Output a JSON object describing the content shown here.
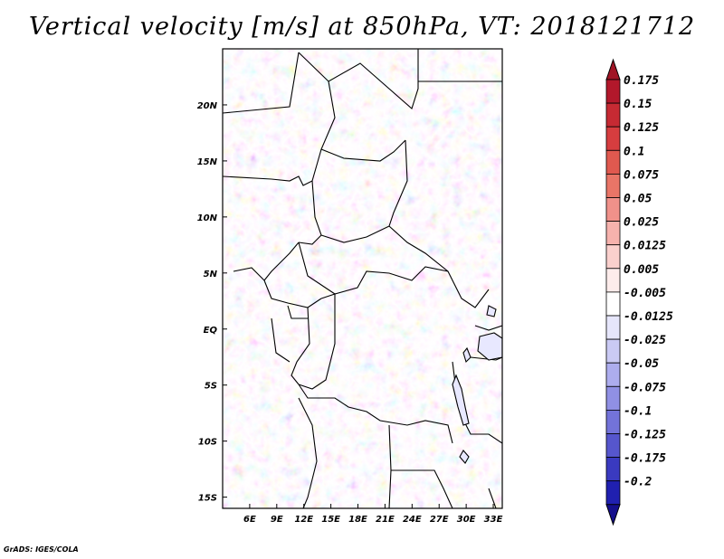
{
  "title": "Vertical velocity [m/s] at 850hPa, VT: 2018121712",
  "credit": "GrADS: IGES/COLA",
  "map": {
    "lon_range": [
      3,
      34
    ],
    "lat_range": [
      -16,
      25
    ],
    "x_ticks": [
      {
        "lon": 6,
        "label": "6E"
      },
      {
        "lon": 9,
        "label": "9E"
      },
      {
        "lon": 12,
        "label": "12E"
      },
      {
        "lon": 15,
        "label": "15E"
      },
      {
        "lon": 18,
        "label": "18E"
      },
      {
        "lon": 21,
        "label": "21E"
      },
      {
        "lon": 24,
        "label": "24E"
      },
      {
        "lon": 27,
        "label": "27E"
      },
      {
        "lon": 30,
        "label": "30E"
      },
      {
        "lon": 33,
        "label": "33E"
      }
    ],
    "y_ticks": [
      {
        "lat": 20,
        "label": "20N"
      },
      {
        "lat": 15,
        "label": "15N"
      },
      {
        "lat": 10,
        "label": "10N"
      },
      {
        "lat": 5,
        "label": "5N"
      },
      {
        "lat": 0,
        "label": "EQ"
      },
      {
        "lat": -5,
        "label": "5S"
      },
      {
        "lat": -10,
        "label": "10S"
      },
      {
        "lat": -15,
        "label": "15S"
      }
    ]
  },
  "colorbar": {
    "levels": [
      {
        "label": "0.175",
        "color": "#b2182b"
      },
      {
        "label": "0.15",
        "color": "#c62a33"
      },
      {
        "label": "0.125",
        "color": "#d63d3f"
      },
      {
        "label": "0.1",
        "color": "#e0594f"
      },
      {
        "label": "0.075",
        "color": "#e97567"
      },
      {
        "label": "0.05",
        "color": "#f0918a"
      },
      {
        "label": "0.025",
        "color": "#f6b2ad"
      },
      {
        "label": "0.0125",
        "color": "#fad0cd"
      },
      {
        "label": "0.005",
        "color": "#fdeceb"
      },
      {
        "label": "-0.005",
        "color": "#ffffff"
      },
      {
        "label": "-0.0125",
        "color": "#e6e6fb"
      },
      {
        "label": "-0.025",
        "color": "#cacaf4"
      },
      {
        "label": "-0.05",
        "color": "#adadee"
      },
      {
        "label": "-0.075",
        "color": "#9090e4"
      },
      {
        "label": "-0.1",
        "color": "#7373d9"
      },
      {
        "label": "-0.125",
        "color": "#5656cd"
      },
      {
        "label": "-0.175",
        "color": "#3a3ac0"
      },
      {
        "label": "-0.2",
        "color": "#2020b0"
      }
    ],
    "top_triangle_color": "#a01525",
    "bottom_triangle_color": "#150f8c"
  }
}
